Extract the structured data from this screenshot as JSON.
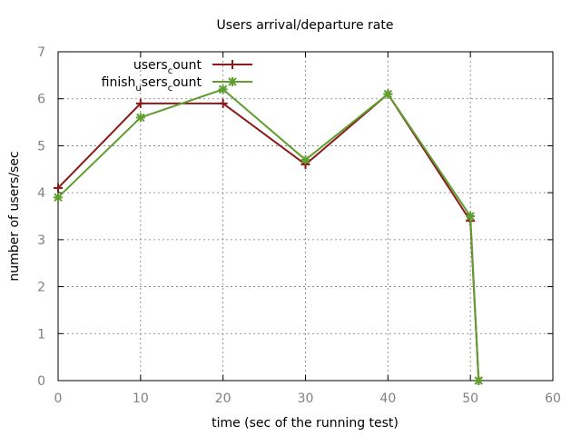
{
  "chart_data": {
    "type": "line",
    "title": "Users arrival/departure rate",
    "xlabel": "time (sec of the running test)",
    "ylabel": "number of users/sec",
    "xlim": [
      0,
      60
    ],
    "ylim": [
      0,
      7
    ],
    "x_ticks": [
      0,
      10,
      20,
      30,
      40,
      50,
      60
    ],
    "y_ticks": [
      0,
      1,
      2,
      3,
      4,
      5,
      6,
      7
    ],
    "grid": true,
    "legend_placement": "top-left",
    "series": [
      {
        "name": "users_count",
        "legend_main": "users",
        "legend_sub": "c",
        "legend_tail": "ount",
        "color": "#8b1a1a",
        "marker": "plus",
        "points": [
          {
            "x": 0,
            "y": 4.1
          },
          {
            "x": 10,
            "y": 5.9
          },
          {
            "x": 20,
            "y": 5.9
          },
          {
            "x": 30,
            "y": 4.6
          },
          {
            "x": 40,
            "y": 6.1
          },
          {
            "x": 50,
            "y": 3.4
          },
          {
            "x": 51,
            "y": 0
          }
        ]
      },
      {
        "name": "finish_users_count",
        "legend_main": "finish",
        "legend_sub": "u",
        "legend_tail": "sers",
        "legend_sub2": "c",
        "legend_tail2": "ount",
        "color": "#5f9e2f",
        "marker": "star",
        "points": [
          {
            "x": 0,
            "y": 3.9
          },
          {
            "x": 10,
            "y": 5.6
          },
          {
            "x": 20,
            "y": 6.2
          },
          {
            "x": 30,
            "y": 4.7
          },
          {
            "x": 40,
            "y": 6.1
          },
          {
            "x": 50,
            "y": 3.5
          },
          {
            "x": 51,
            "y": 0
          }
        ]
      }
    ]
  }
}
